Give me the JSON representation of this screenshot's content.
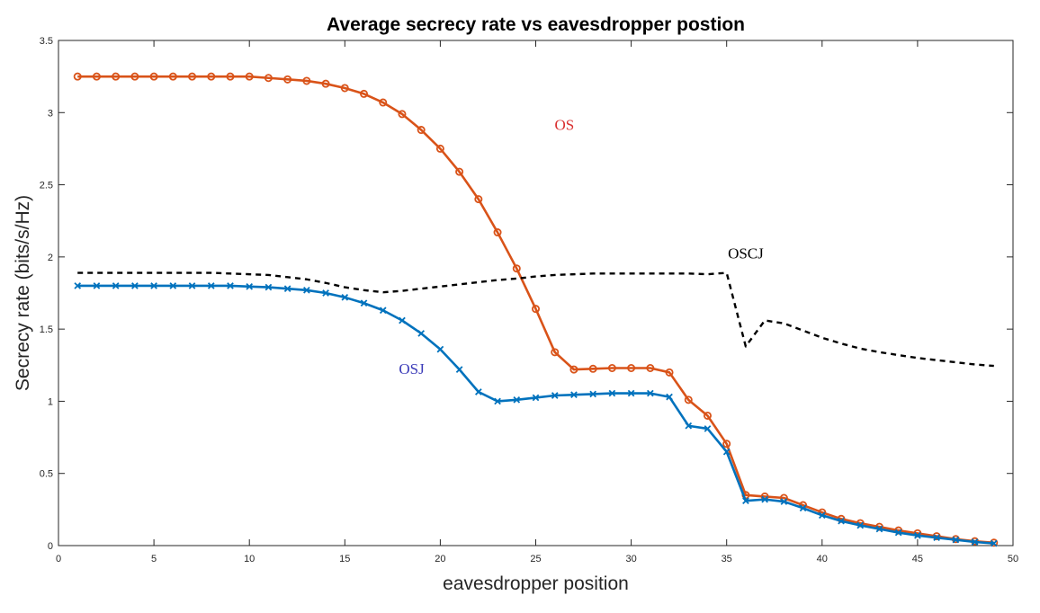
{
  "chart_data": {
    "type": "line",
    "title": "Average secrecy rate vs eavesdropper postion",
    "xlabel": "eavesdropper position",
    "ylabel": "Secrecy rate (bits/s/Hz)",
    "xlim": [
      0,
      50
    ],
    "ylim": [
      0,
      3.5
    ],
    "xticks": [
      0,
      5,
      10,
      15,
      20,
      25,
      30,
      35,
      40,
      45,
      50
    ],
    "yticks": [
      0,
      0.5,
      1,
      1.5,
      2,
      2.5,
      3,
      3.5
    ],
    "grid": false,
    "legend": "none",
    "x": [
      1,
      2,
      3,
      4,
      5,
      6,
      7,
      8,
      9,
      10,
      11,
      12,
      13,
      14,
      15,
      16,
      17,
      18,
      19,
      20,
      21,
      22,
      23,
      24,
      25,
      26,
      27,
      28,
      29,
      30,
      31,
      32,
      33,
      34,
      35,
      36,
      37,
      38,
      39,
      40,
      41,
      42,
      43,
      44,
      45,
      46,
      47,
      48,
      49
    ],
    "series": [
      {
        "name": "OS",
        "color": "#d95319",
        "marker": "circle",
        "dash": "solid",
        "values": [
          3.25,
          3.25,
          3.25,
          3.25,
          3.25,
          3.25,
          3.25,
          3.25,
          3.25,
          3.25,
          3.24,
          3.23,
          3.22,
          3.2,
          3.17,
          3.13,
          3.07,
          2.99,
          2.88,
          2.75,
          2.59,
          2.4,
          2.17,
          1.92,
          1.64,
          1.34,
          1.22,
          1.225,
          1.23,
          1.23,
          1.23,
          1.2,
          1.01,
          0.9,
          0.705,
          0.35,
          0.34,
          0.33,
          0.28,
          0.23,
          0.185,
          0.155,
          0.13,
          0.105,
          0.085,
          0.065,
          0.045,
          0.03,
          0.02
        ]
      },
      {
        "name": "OSJ",
        "color": "#0072bd",
        "marker": "x",
        "dash": "solid",
        "values": [
          1.8,
          1.8,
          1.8,
          1.8,
          1.8,
          1.8,
          1.8,
          1.8,
          1.8,
          1.795,
          1.79,
          1.78,
          1.77,
          1.75,
          1.72,
          1.68,
          1.63,
          1.56,
          1.47,
          1.36,
          1.22,
          1.065,
          1.0,
          1.01,
          1.025,
          1.04,
          1.045,
          1.05,
          1.055,
          1.055,
          1.055,
          1.03,
          0.83,
          0.81,
          0.65,
          0.31,
          0.32,
          0.305,
          0.26,
          0.21,
          0.17,
          0.14,
          0.115,
          0.09,
          0.07,
          0.055,
          0.04,
          0.025,
          0.015
        ]
      },
      {
        "name": "OSCJ",
        "color": "#000000",
        "marker": "none",
        "dash": "dashed",
        "values": [
          1.89,
          1.89,
          1.89,
          1.89,
          1.89,
          1.89,
          1.89,
          1.89,
          1.885,
          1.88,
          1.875,
          1.86,
          1.845,
          1.82,
          1.79,
          1.77,
          1.755,
          1.765,
          1.78,
          1.795,
          1.81,
          1.825,
          1.84,
          1.85,
          1.865,
          1.875,
          1.88,
          1.885,
          1.885,
          1.885,
          1.885,
          1.885,
          1.885,
          1.88,
          1.89,
          1.38,
          1.56,
          1.54,
          1.49,
          1.44,
          1.4,
          1.365,
          1.34,
          1.32,
          1.3,
          1.285,
          1.27,
          1.255,
          1.245
        ]
      }
    ],
    "annotations": [
      {
        "text": "OS",
        "x": 26.5,
        "y": 2.88,
        "color": "#d93030"
      },
      {
        "text": "OSCJ",
        "x": 36,
        "y": 1.99,
        "color": "#000000"
      },
      {
        "text": "OSJ",
        "x": 18.5,
        "y": 1.19,
        "color": "#3a3ab8"
      }
    ]
  }
}
